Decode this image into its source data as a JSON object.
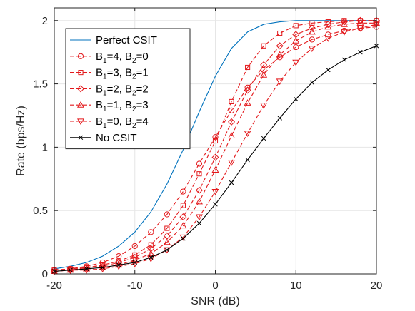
{
  "chart_data": {
    "type": "line",
    "title": "",
    "xlabel": "SNR (dB)",
    "ylabel": "Rate (bps/Hz)",
    "xlim": [
      -20,
      20
    ],
    "ylim": [
      0,
      2.1
    ],
    "xticks": [
      -20,
      -10,
      0,
      10,
      20
    ],
    "xtick_labels": [
      "-20",
      "-10",
      "0",
      "10",
      "20"
    ],
    "yticks": [
      0,
      0.5,
      1,
      1.5,
      2
    ],
    "ytick_labels": [
      "0",
      "0.5",
      "1",
      "1.5",
      "2"
    ],
    "grid": true,
    "legend_position": "top-left",
    "x": [
      -20,
      -18,
      -16,
      -14,
      -12,
      -10,
      -8,
      -6,
      -4,
      -2,
      0,
      2,
      4,
      6,
      8,
      10,
      12,
      14,
      16,
      18,
      20
    ],
    "series": [
      {
        "name": "Perfect CSIT",
        "legend": {
          "main": "Perfect CSIT",
          "parts": []
        },
        "color": "#0072BD",
        "dash": "solid",
        "marker": "none",
        "values": [
          0.04,
          0.06,
          0.09,
          0.14,
          0.22,
          0.33,
          0.49,
          0.71,
          0.98,
          1.28,
          1.56,
          1.78,
          1.91,
          1.97,
          1.99,
          2.0,
          2.0,
          2.0,
          2.0,
          2.0,
          2.0
        ]
      },
      {
        "name": "B1=4, B2=0",
        "legend": {
          "main": "",
          "parts": [
            "B",
            "1",
            "=4, B",
            "2",
            "=0"
          ]
        },
        "color": "#E3191C",
        "dash": "dashed",
        "marker": "circle",
        "values": [
          0.03,
          0.04,
          0.06,
          0.09,
          0.14,
          0.22,
          0.33,
          0.47,
          0.65,
          0.87,
          1.08,
          1.29,
          1.47,
          1.61,
          1.71,
          1.79,
          1.85,
          1.89,
          1.92,
          1.94,
          1.95
        ]
      },
      {
        "name": "B1=3, B2=1",
        "legend": {
          "main": "",
          "parts": [
            "B",
            "1",
            "=3, B",
            "2",
            "=1"
          ]
        },
        "color": "#E3191C",
        "dash": "dashed",
        "marker": "square",
        "values": [
          0.03,
          0.04,
          0.05,
          0.07,
          0.1,
          0.15,
          0.23,
          0.36,
          0.54,
          0.79,
          1.05,
          1.36,
          1.63,
          1.8,
          1.9,
          1.96,
          1.98,
          1.99,
          2.0,
          2.0,
          2.0
        ]
      },
      {
        "name": "B1=2, B2=2",
        "legend": {
          "main": "",
          "parts": [
            "B",
            "1",
            "=2, B",
            "2",
            "=2"
          ]
        },
        "color": "#E3191C",
        "dash": "dashed",
        "marker": "diamond",
        "values": [
          0.02,
          0.03,
          0.05,
          0.06,
          0.09,
          0.13,
          0.2,
          0.3,
          0.45,
          0.66,
          0.92,
          1.2,
          1.45,
          1.65,
          1.8,
          1.89,
          1.94,
          1.97,
          1.99,
          2.0,
          2.0
        ]
      },
      {
        "name": "B1=1, B2=3",
        "legend": {
          "main": "",
          "parts": [
            "B",
            "1",
            "=1, B",
            "2",
            "=3"
          ]
        },
        "color": "#E3191C",
        "dash": "dashed",
        "marker": "triangle-up",
        "values": [
          0.02,
          0.03,
          0.04,
          0.05,
          0.07,
          0.11,
          0.16,
          0.25,
          0.38,
          0.57,
          0.82,
          1.09,
          1.35,
          1.57,
          1.73,
          1.84,
          1.91,
          1.95,
          1.97,
          1.98,
          1.98
        ]
      },
      {
        "name": "B1=0, B2=4",
        "legend": {
          "main": "",
          "parts": [
            "B",
            "1",
            "=0, B",
            "2",
            "=4"
          ]
        },
        "color": "#E3191C",
        "dash": "dashed",
        "marker": "triangle-down",
        "values": [
          0.02,
          0.03,
          0.03,
          0.04,
          0.06,
          0.08,
          0.12,
          0.19,
          0.29,
          0.45,
          0.65,
          0.88,
          1.11,
          1.33,
          1.52,
          1.67,
          1.78,
          1.86,
          1.91,
          1.94,
          1.97
        ]
      },
      {
        "name": "No CSIT",
        "legend": {
          "main": "No CSIT",
          "parts": []
        },
        "color": "#000000",
        "dash": "solid",
        "marker": "x",
        "values": [
          0.02,
          0.03,
          0.04,
          0.05,
          0.07,
          0.09,
          0.13,
          0.19,
          0.28,
          0.4,
          0.55,
          0.72,
          0.9,
          1.07,
          1.23,
          1.38,
          1.51,
          1.61,
          1.69,
          1.75,
          1.8
        ]
      }
    ]
  }
}
